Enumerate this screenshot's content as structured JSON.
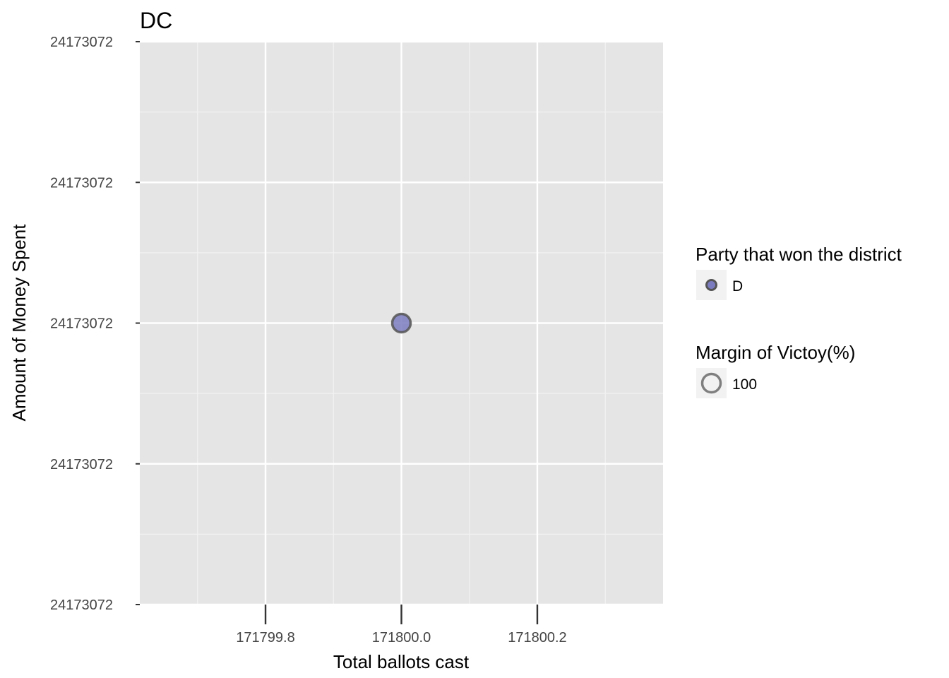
{
  "chart_data": {
    "type": "scatter",
    "title": "DC",
    "xlabel": "Total ballots cast",
    "ylabel": "Amount of Money Spent",
    "x_ticks": [
      "171799.8",
      "171800.0",
      "171800.2"
    ],
    "x_tick_values": [
      171799.8,
      171800.0,
      171800.2
    ],
    "y_ticks": [
      "24173072",
      "24173072",
      "24173072",
      "24173072",
      "24173072"
    ],
    "xlim": [
      171799.615,
      171800.385
    ],
    "grid": true,
    "points": [
      {
        "x": 171800.0,
        "y": 24173072,
        "party": "D",
        "margin": 100
      }
    ],
    "legend": {
      "placement": "right",
      "party": {
        "title": "Party that won the district",
        "items": [
          {
            "label": "D",
            "color": "#7b7bbf"
          }
        ]
      },
      "margin": {
        "title": "Margin of Victoy(%)",
        "items": [
          {
            "label": "100"
          }
        ]
      }
    },
    "colors": {
      "panel": "#e5e5e5",
      "grid": "#ffffff",
      "point_fill": "#7b7bbf",
      "point_stroke": "#555555"
    }
  }
}
